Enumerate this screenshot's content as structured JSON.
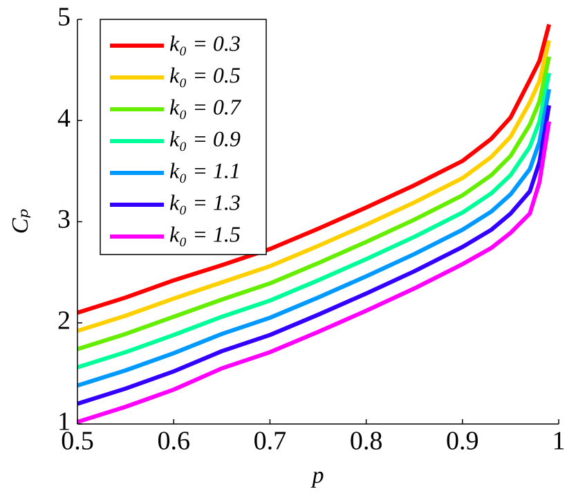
{
  "chart_data": {
    "type": "line",
    "xlabel": "p",
    "ylabel": "Cₚ",
    "x": [
      0.5,
      0.55,
      0.6,
      0.65,
      0.7,
      0.75,
      0.8,
      0.85,
      0.9,
      0.93,
      0.95,
      0.97,
      0.98,
      0.99
    ],
    "series": [
      {
        "name": "k₀ = 0.3",
        "color": "#ff0000",
        "values": [
          2.1,
          2.25,
          2.42,
          2.57,
          2.73,
          2.93,
          3.14,
          3.36,
          3.6,
          3.82,
          4.03,
          4.4,
          4.59,
          4.95
        ]
      },
      {
        "name": "k₀ = 0.5",
        "color": "#ffd000",
        "values": [
          1.92,
          2.07,
          2.24,
          2.4,
          2.56,
          2.76,
          2.97,
          3.19,
          3.43,
          3.64,
          3.84,
          4.18,
          4.39,
          4.79
        ]
      },
      {
        "name": "k₀ = 0.7",
        "color": "#66ee00",
        "values": [
          1.74,
          1.89,
          2.06,
          2.23,
          2.39,
          2.59,
          2.8,
          3.02,
          3.26,
          3.46,
          3.65,
          3.96,
          4.19,
          4.63
        ]
      },
      {
        "name": "k₀ = 0.9",
        "color": "#00ff99",
        "values": [
          1.56,
          1.71,
          1.88,
          2.06,
          2.22,
          2.42,
          2.63,
          2.85,
          3.09,
          3.28,
          3.46,
          3.74,
          3.99,
          4.47
        ]
      },
      {
        "name": "k₀ = 1.1",
        "color": "#0099ff",
        "values": [
          1.38,
          1.53,
          1.7,
          1.89,
          2.05,
          2.25,
          2.46,
          2.68,
          2.92,
          3.1,
          3.27,
          3.52,
          3.79,
          4.31
        ]
      },
      {
        "name": "k₀ = 1.3",
        "color": "#3300ff",
        "values": [
          1.2,
          1.35,
          1.52,
          1.72,
          1.88,
          2.08,
          2.29,
          2.51,
          2.75,
          2.92,
          3.08,
          3.3,
          3.59,
          4.15
        ]
      },
      {
        "name": "k₀ = 1.5",
        "color": "#ff00ff",
        "values": [
          1.02,
          1.17,
          1.34,
          1.55,
          1.71,
          1.91,
          2.12,
          2.34,
          2.58,
          2.74,
          2.89,
          3.08,
          3.39,
          3.99
        ]
      }
    ],
    "xlim": [
      0.5,
      1
    ],
    "ylim": [
      1,
      5
    ],
    "xticks": [
      0.5,
      0.6,
      0.7,
      0.8,
      0.9,
      1
    ],
    "yticks": [
      1,
      2,
      3,
      4,
      5
    ],
    "legend": "upper left"
  }
}
